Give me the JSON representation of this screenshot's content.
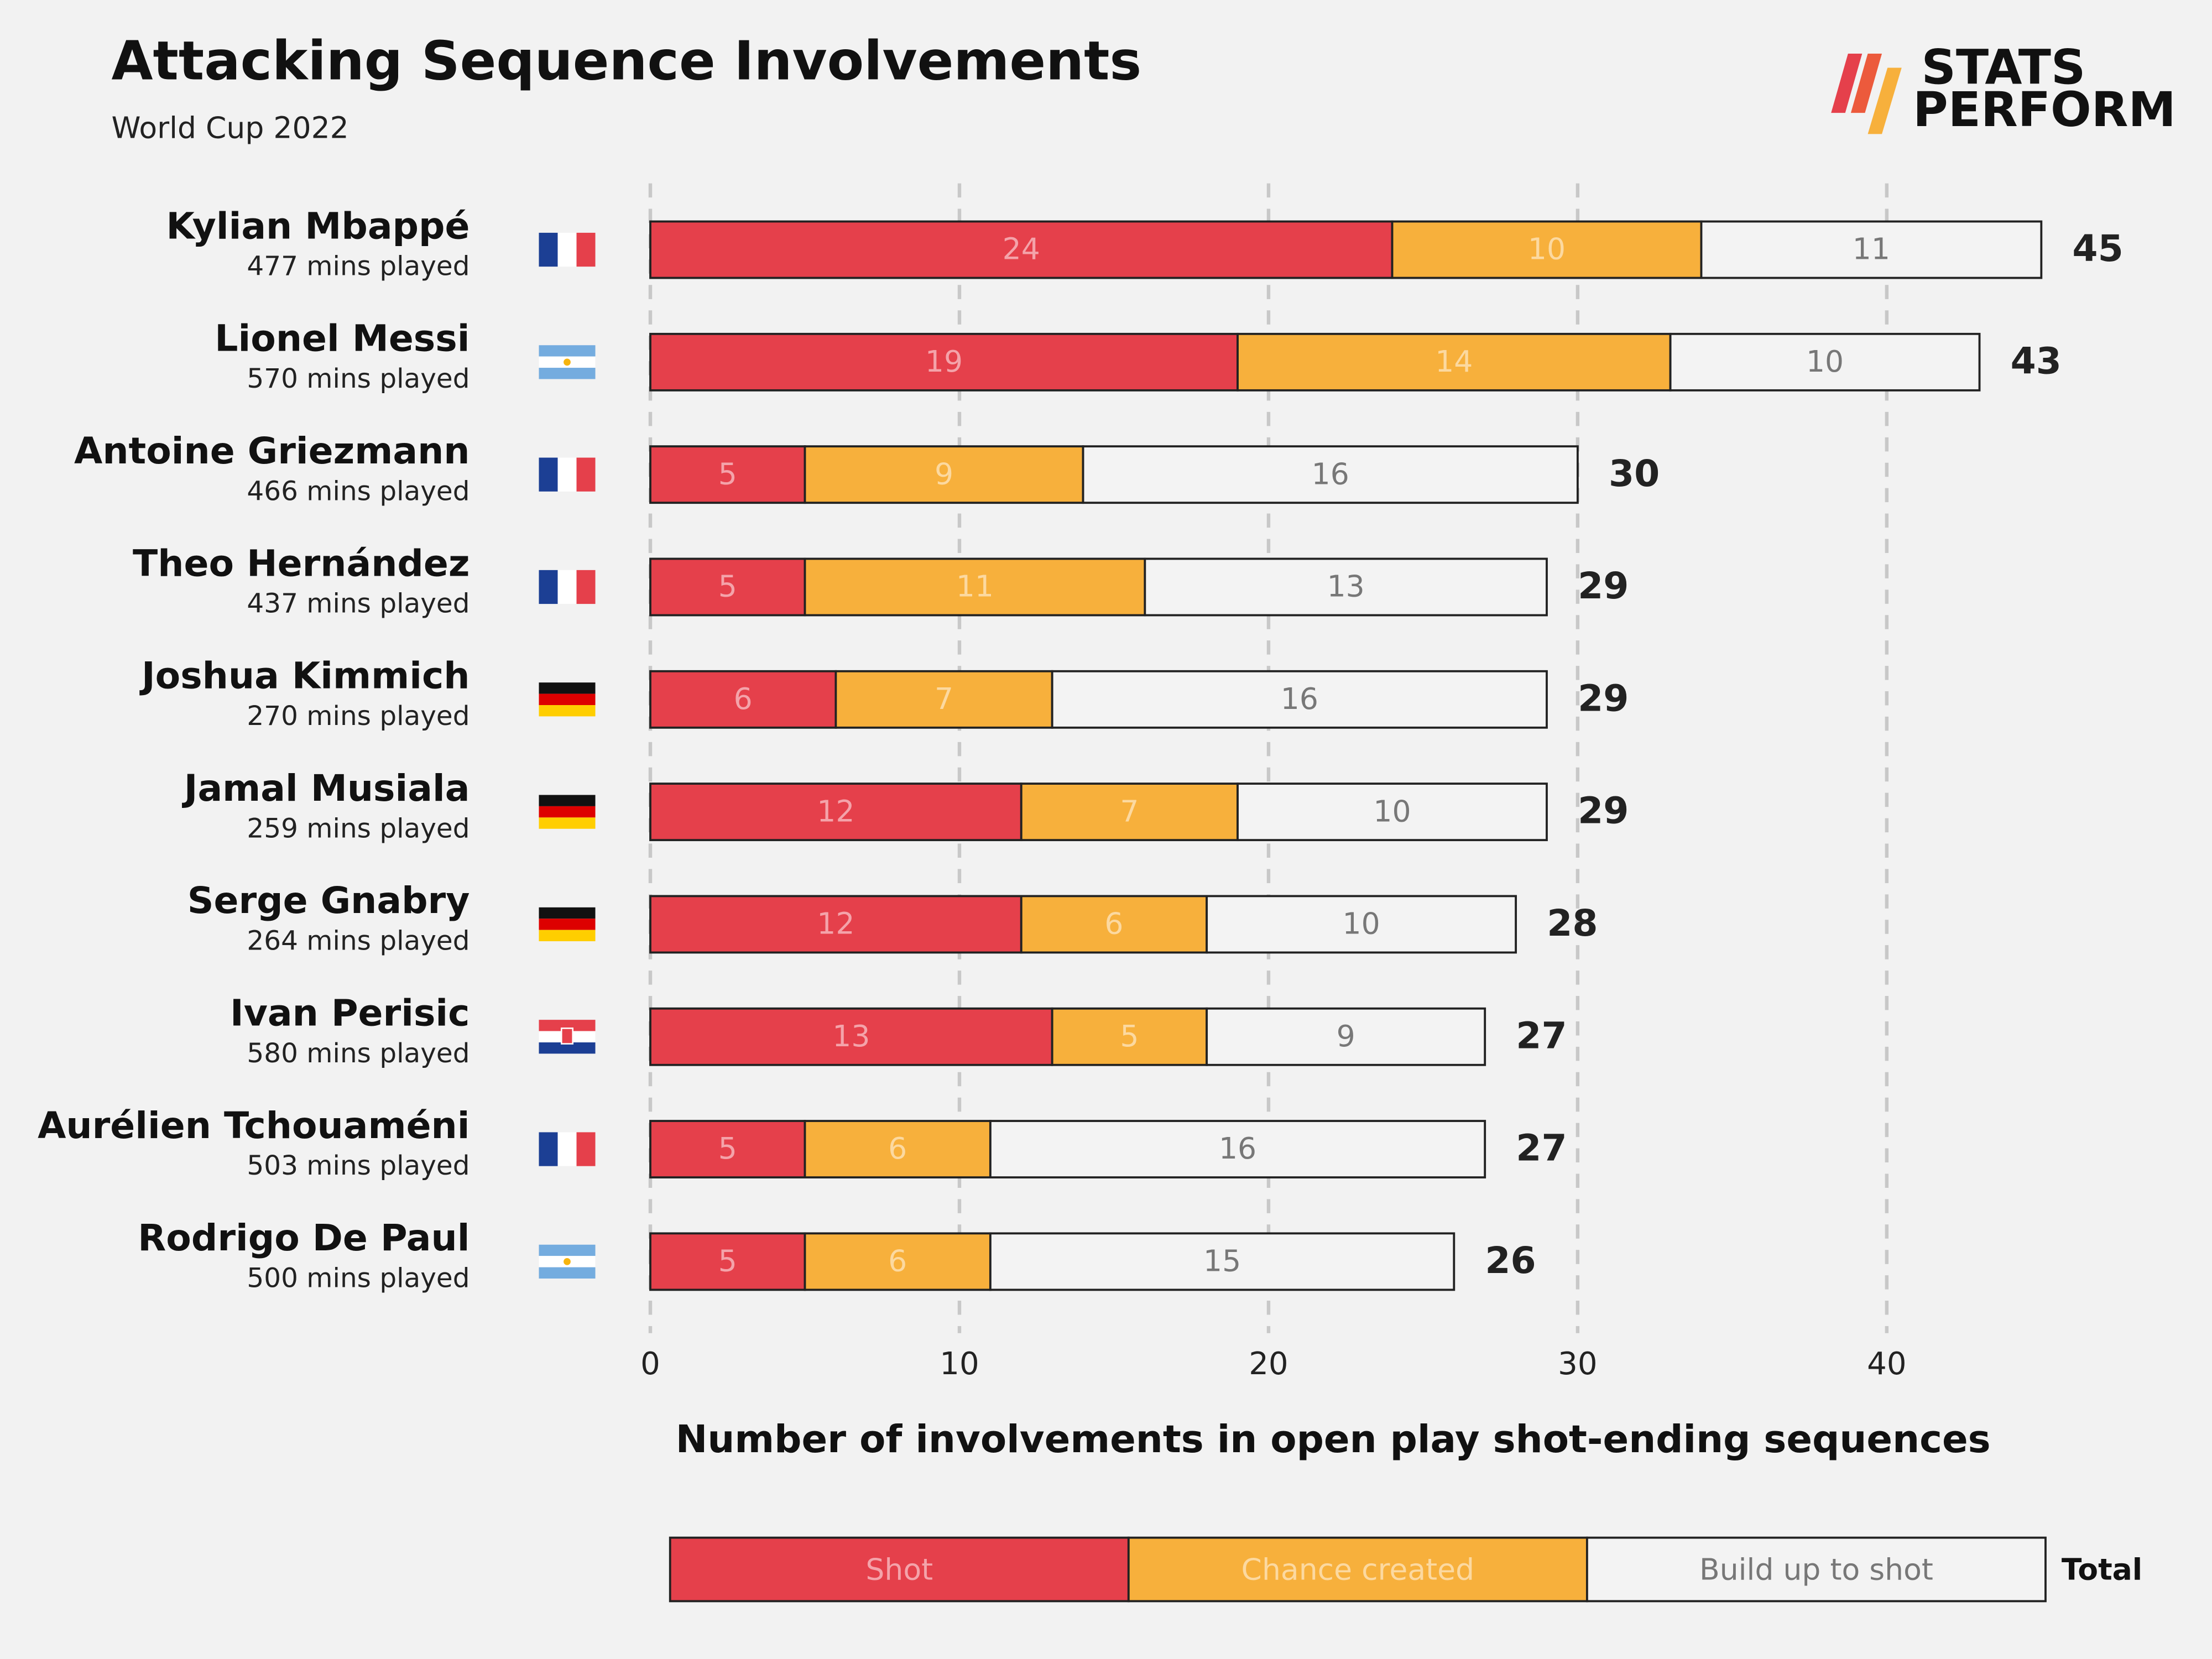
{
  "chart_data": {
    "type": "stacked-bar-horizontal",
    "title": "Attacking Sequence Involvements",
    "subtitle": "World Cup 2022",
    "brand": [
      "STATS",
      "PERFORM"
    ],
    "x_label": "Number of involvements in open play shot-ending sequences",
    "categories": [
      "Kylian Mbappé",
      "Lionel Messi",
      "Antoine Griezmann",
      "Theo Hernández",
      "Joshua Kimmich",
      "Jamal Musiala",
      "Serge Gnabry",
      "Ivan Perisic",
      "Aurélien Tchouaméni",
      "Rodrigo De Paul"
    ],
    "category_notes": [
      "477 mins played",
      "570 mins played",
      "466 mins played",
      "437 mins played",
      "270 mins played",
      "259 mins played",
      "264 mins played",
      "580 mins played",
      "503 mins played",
      "500 mins played"
    ],
    "series": [
      {
        "name": "Shot",
        "color": "#e5404b",
        "label_color": "#f4a3aa",
        "values": [
          24,
          19,
          5,
          5,
          6,
          12,
          12,
          13,
          5,
          5
        ]
      },
      {
        "name": "Chance created",
        "color": "#f7b03c",
        "label_color": "#fcd9a0",
        "values": [
          10,
          14,
          9,
          11,
          7,
          7,
          6,
          5,
          6,
          6
        ]
      },
      {
        "name": "Build up to shot",
        "color": "#f3f3f3",
        "label_color": "#777777",
        "values": [
          11,
          10,
          16,
          13,
          16,
          10,
          10,
          9,
          16,
          15
        ]
      }
    ],
    "totals": [
      45,
      43,
      30,
      29,
      29,
      29,
      28,
      27,
      27,
      26
    ],
    "total_label": "Total",
    "xlim": [
      0,
      45
    ],
    "xticks": [
      0,
      10,
      20,
      30,
      40
    ],
    "grid": true
  }
}
